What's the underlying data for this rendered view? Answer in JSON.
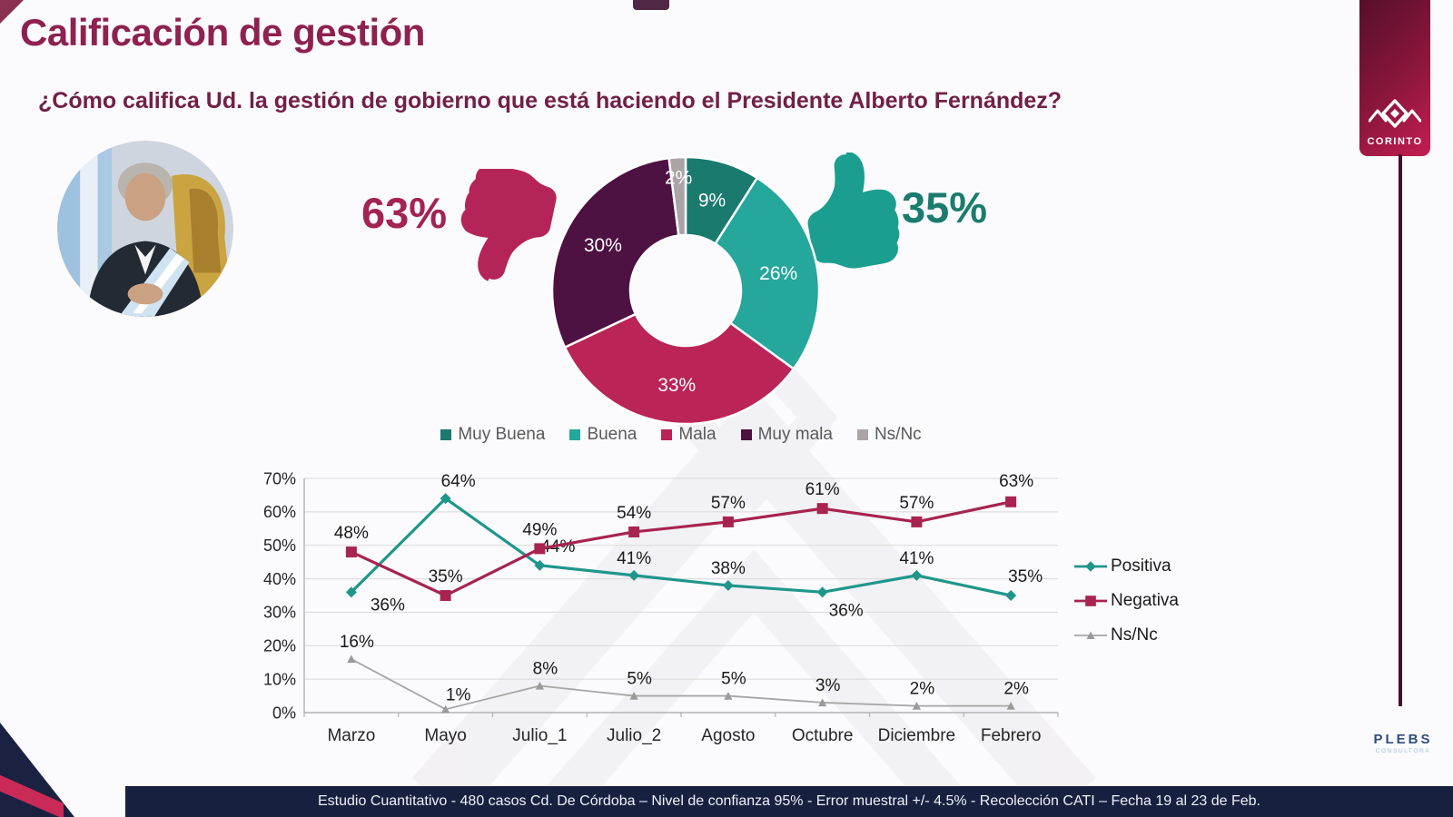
{
  "slide": {
    "title": "Calificación de gestión",
    "question": "¿Cómo califica Ud. la gestión de gobierno que está haciendo el Presidente Alberto Fernández?",
    "footer": "Estudio Cuantitativo - 480 casos Cd. De Córdoba – Nivel de confianza 95% - Error muestral +/- 4.5% - Recolección CATI – Fecha 19 al 23 de Feb."
  },
  "brand": {
    "ribbon_label": "CORINTO",
    "footer_logo": "PLEBS",
    "footer_logo_sub": "CONSULTORA"
  },
  "summary": {
    "negative": {
      "value": "63%",
      "color": "#a32353"
    },
    "positive": {
      "value": "35%",
      "color": "#1a7c6e"
    }
  },
  "chart_data": [
    {
      "type": "pie",
      "subtype": "donut",
      "labels": [
        "Muy Buena",
        "Buena",
        "Mala",
        "Muy mala",
        "Ns/Nc"
      ],
      "values": [
        9,
        26,
        33,
        30,
        2
      ],
      "colors": [
        "#1a7a6d",
        "#25a79b",
        "#bb2456",
        "#4d1142",
        "#aaa4a6"
      ],
      "label_format": "percent",
      "legend_position": "bottom"
    },
    {
      "type": "line",
      "categories": [
        "Marzo",
        "Mayo",
        "Julio_1",
        "Julio_2",
        "Agosto",
        "Octubre",
        "Diciembre",
        "Febrero"
      ],
      "series": [
        {
          "name": "Positiva",
          "color": "#1f968b",
          "marker": "diamond",
          "values": [
            36,
            64,
            44,
            41,
            38,
            36,
            41,
            35
          ]
        },
        {
          "name": "Negativa",
          "color": "#a8234f",
          "marker": "square",
          "values": [
            48,
            35,
            49,
            54,
            57,
            61,
            57,
            63
          ]
        },
        {
          "name": "Ns/Nc",
          "color": "#a6a6a6",
          "marker": "triangle",
          "values": [
            16,
            1,
            8,
            5,
            5,
            3,
            2,
            2
          ]
        }
      ],
      "ylim": [
        0,
        70
      ],
      "ytick_step": 10,
      "ytick_suffix": "%",
      "grid": true,
      "legend_position": "right"
    }
  ]
}
